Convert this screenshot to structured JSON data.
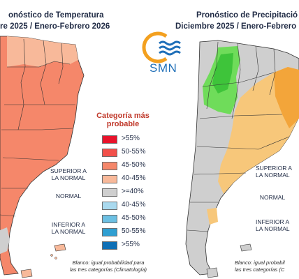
{
  "left_panel": {
    "title_line1": "onóstico de Temperatura",
    "title_line2": "re 2025 / Enero-Febrero 2026",
    "side_label_superior": [
      "SUPERIOR A",
      "LA NORMAL"
    ],
    "side_label_normal": "NORMAL",
    "side_label_inferior": [
      "INFERIOR A",
      "LA NORMAL"
    ]
  },
  "right_panel": {
    "title_line1": "Pronóstico de Precipitació",
    "title_line2": "Diciembre 2025 / Enero-Febrero",
    "side_label_superior": [
      "SUPERIOR A",
      "LA NORMAL"
    ],
    "side_label_normal": "NORMAL",
    "side_label_inferior": [
      "INFERIOR A",
      "LA NORMAL"
    ],
    "note_line1": "Blanco: igual probabil",
    "note_line2": "las tres categorías (C"
  },
  "logo": {
    "text": "SMN"
  },
  "legend": {
    "title_line1": "Categoría más",
    "title_line2": "probable",
    "items": [
      {
        "label": ">55%",
        "color": "#e8132b"
      },
      {
        "label": "50-55%",
        "color": "#f2504a"
      },
      {
        "label": "45-50%",
        "color": "#f5876a"
      },
      {
        "label": "40-45%",
        "color": "#f8b99a"
      },
      {
        "label": ">=40%",
        "color": "#cfcfcf"
      },
      {
        "label": "40-45%",
        "color": "#a9d9ee"
      },
      {
        "label": "45-50%",
        "color": "#6cc0e3"
      },
      {
        "label": "50-55%",
        "color": "#2f9fd2"
      },
      {
        "label": ">55%",
        "color": "#0e6fb5"
      }
    ],
    "note_line1": "Blanco: igual probabilidad para",
    "note_line2": "las tres categorías (Climatología)"
  },
  "colors": {
    "warm": "#f5876a",
    "warm_light": "#f8b99a",
    "normal": "#cfcfcf",
    "dry": "#f7c77a",
    "dry_strong": "#f3a53a",
    "wet": "#6fdc5a",
    "wet_strong": "#3ec43a"
  }
}
